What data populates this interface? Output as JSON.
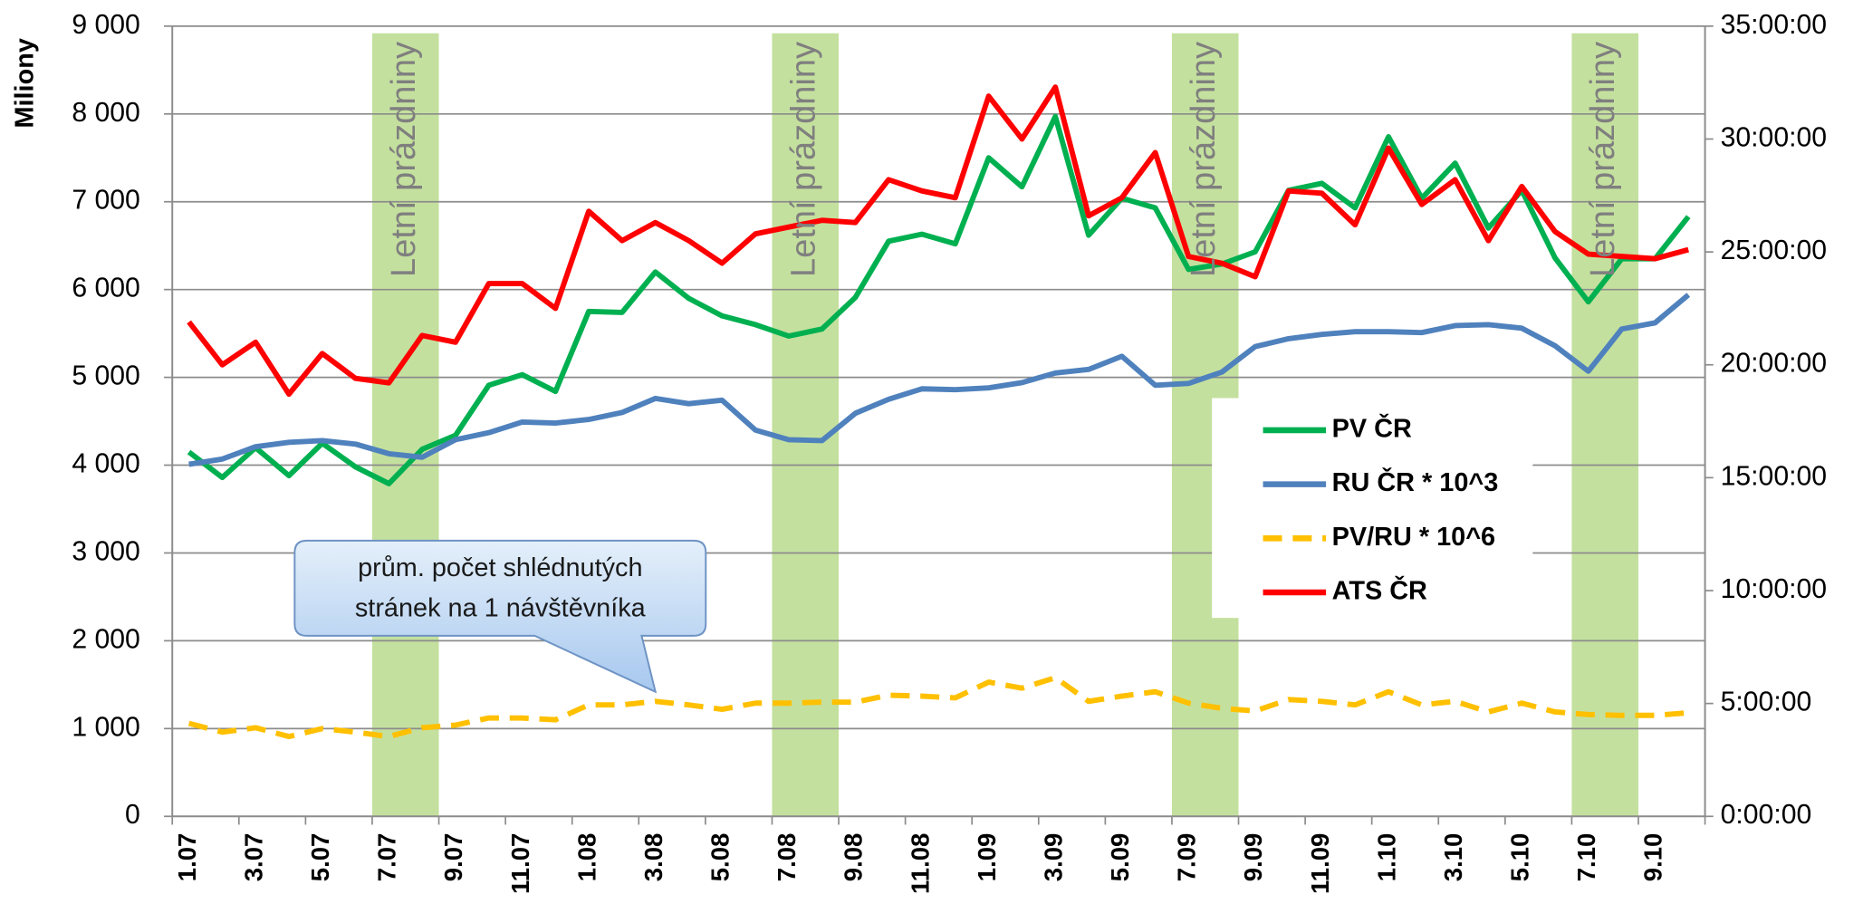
{
  "chart_data": {
    "type": "line",
    "y_label": "Miliony",
    "categories": [
      "1.07",
      null,
      "3.07",
      null,
      "5.07",
      null,
      "7.07",
      null,
      "9.07",
      null,
      "11.07",
      null,
      "1.08",
      null,
      "3.08",
      null,
      "5.08",
      null,
      "7.08",
      null,
      "9.08",
      null,
      "11.08",
      null,
      "1.09",
      null,
      "3.09",
      null,
      "5.09",
      null,
      "7.09",
      null,
      "9.09",
      null,
      "11.09",
      null,
      "1.10",
      null,
      "3.10",
      null,
      "5.10",
      null,
      "7.10",
      null,
      "9.10",
      null
    ],
    "series": [
      {
        "name": "PV ČR",
        "color": "#00b050",
        "values": [
          4150,
          3860,
          4200,
          3880,
          4250,
          3980,
          3790,
          4180,
          4340,
          4910,
          5030,
          4840,
          5750,
          5740,
          6200,
          5900,
          5700,
          5600,
          5470,
          5550,
          5910,
          6550,
          6630,
          6520,
          7500,
          7170,
          7970,
          6620,
          7040,
          6930,
          6230,
          6290,
          6430,
          7130,
          7210,
          6930,
          7740,
          7040,
          7440,
          6700,
          7130,
          6360,
          5860,
          6350,
          6350,
          6830
        ]
      },
      {
        "name": "RU ČR * 10^3",
        "color": "#4f81bd",
        "values": [
          4010,
          4070,
          4210,
          4260,
          4280,
          4240,
          4130,
          4090,
          4290,
          4370,
          4490,
          4480,
          4520,
          4600,
          4760,
          4700,
          4740,
          4400,
          4290,
          4280,
          4590,
          4750,
          4870,
          4860,
          4880,
          4940,
          5050,
          5090,
          5240,
          4910,
          4930,
          5060,
          5350,
          5440,
          5490,
          5520,
          5520,
          5510,
          5590,
          5600,
          5560,
          5360,
          5070,
          5550,
          5620,
          5940
        ]
      },
      {
        "name": "PV/RU * 10^6",
        "color": "#ffc000",
        "dashed": true,
        "values": [
          1060,
          960,
          1010,
          910,
          1000,
          960,
          910,
          1010,
          1040,
          1120,
          1120,
          1100,
          1270,
          1270,
          1310,
          1270,
          1220,
          1290,
          1290,
          1300,
          1300,
          1380,
          1370,
          1350,
          1530,
          1460,
          1580,
          1310,
          1370,
          1420,
          1290,
          1230,
          1200,
          1330,
          1310,
          1270,
          1420,
          1270,
          1310,
          1190,
          1290,
          1190,
          1160,
          1150,
          1150,
          1180
        ]
      },
      {
        "name": "ATS ČR",
        "color": "#ff0000",
        "axis": "y2",
        "values": [
          21.9,
          20.0,
          21.0,
          18.7,
          20.5,
          19.4,
          19.2,
          21.3,
          21.0,
          23.6,
          23.6,
          22.5,
          26.8,
          25.5,
          26.3,
          25.5,
          24.5,
          25.8,
          26.1,
          26.4,
          26.3,
          28.2,
          27.7,
          27.4,
          31.9,
          30.0,
          32.3,
          26.6,
          27.4,
          29.4,
          24.8,
          24.5,
          23.9,
          27.7,
          27.6,
          26.2,
          29.6,
          27.1,
          28.2,
          25.5,
          27.9,
          25.9,
          24.9,
          24.8,
          24.7,
          25.1
        ]
      }
    ],
    "ylim": [
      0,
      9000
    ],
    "yticks": [
      0,
      {
        "value": 1000,
        "label": "1 000"
      },
      {
        "value": 2000,
        "label": "2 000"
      },
      {
        "value": 3000,
        "label": "3 000"
      },
      {
        "value": 4000,
        "label": "4 000"
      },
      {
        "value": 5000,
        "label": "5 000"
      },
      {
        "value": 6000,
        "label": "6 000"
      },
      {
        "value": 7000,
        "label": "7 000"
      },
      {
        "value": 8000,
        "label": "8 000"
      },
      {
        "value": 9000,
        "label": "9 000"
      }
    ],
    "y2lim": [
      0,
      35
    ],
    "y2ticks": [
      {
        "value": 0,
        "label": "0:00:00"
      },
      {
        "value": 5,
        "label": "5:00:00"
      },
      {
        "value": 10,
        "label": "10:00:00"
      },
      {
        "value": 15,
        "label": "15:00:00"
      },
      {
        "value": 20,
        "label": "20:00:00"
      },
      {
        "value": 25,
        "label": "25:00:00"
      },
      {
        "value": 30,
        "label": "30:00:00"
      },
      {
        "value": 35,
        "label": "35:00:00"
      }
    ],
    "grid": true,
    "legend": "right",
    "shaded_regions": [
      {
        "label": "Letní prázdniny",
        "x": [
          6,
          7
        ],
        "color": "#c4e09e"
      },
      {
        "label": "Letní prázdniny",
        "x": [
          18,
          19
        ],
        "color": "#c4e09e"
      },
      {
        "label": "Letní prázdniny",
        "x": [
          30,
          31
        ],
        "color": "#c4e09e"
      },
      {
        "label": "Letní prázdniny",
        "x": [
          42,
          43
        ],
        "color": "#c4e09e"
      }
    ],
    "callout": {
      "lines": [
        "prům. počet shlédnutých",
        "stránek na 1 návštěvníka"
      ],
      "target_series": 2,
      "target_index": 14
    }
  }
}
